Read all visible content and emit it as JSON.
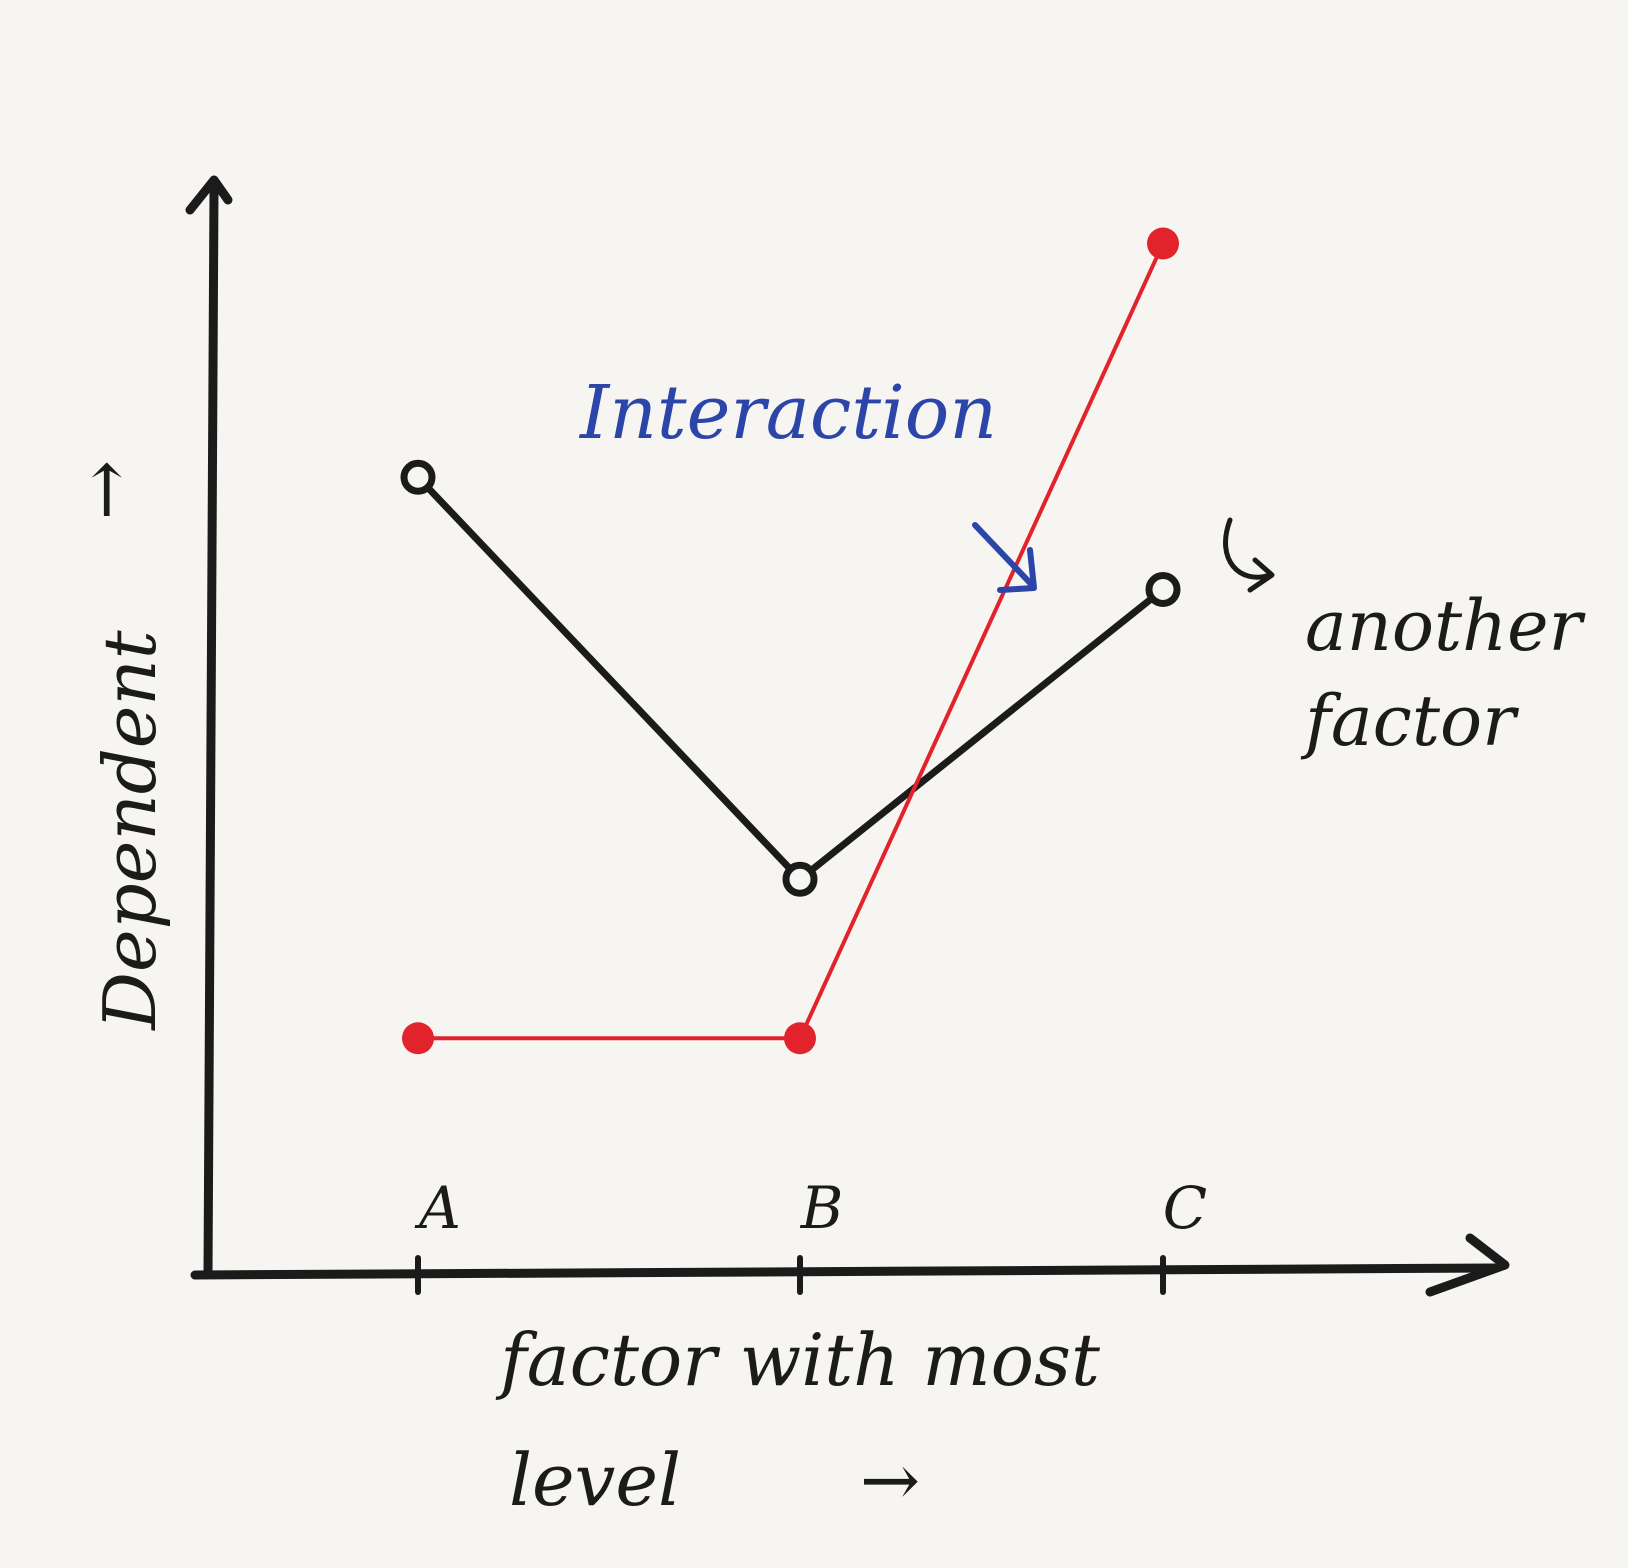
{
  "chart_data": {
    "type": "line",
    "categories": [
      "A",
      "B",
      "C"
    ],
    "series": [
      {
        "values": [
          8.5,
          4.2,
          7.3
        ],
        "color": "#1b1b1b",
        "marker": "open-circle"
      },
      {
        "values": [
          2.5,
          2.5,
          11.0
        ],
        "color": "#e3232c",
        "marker": "filled-circle"
      }
    ],
    "xlabel_lines": [
      "factor with most",
      "level"
    ],
    "xlabel_arrow": "→",
    "ylabel": "Dependent",
    "ylabel_arrow": "→",
    "ylim": [
      0,
      12
    ],
    "grid": false,
    "annotations": {
      "interaction": {
        "text": "Interaction",
        "color": "#2b45a8"
      },
      "another_factor": [
        "another",
        "factor"
      ]
    }
  }
}
